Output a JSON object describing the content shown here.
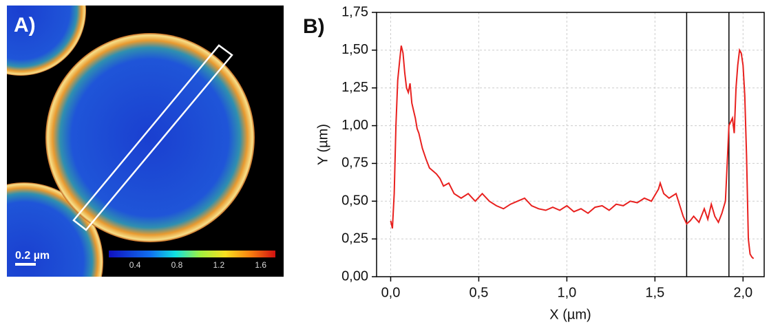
{
  "image_panel": {
    "label": "A)",
    "scale_bar": "0.2 µm",
    "colorbar_lim": [
      0.15,
      1.74
    ],
    "colorbar_ticks": [
      0.4,
      0.8,
      1.2,
      1.6
    ]
  },
  "chart_data": {
    "type": "line",
    "panel_label": "B)",
    "xlabel": "X (µm)",
    "ylabel": "Y (µm)",
    "xlim": [
      -0.08,
      2.12
    ],
    "ylim": [
      0,
      1.75
    ],
    "xticks": [
      {
        "value": 0,
        "label": "0,0"
      },
      {
        "value": 0.5,
        "label": "0,5"
      },
      {
        "value": 1,
        "label": "1,0"
      },
      {
        "value": 1.5,
        "label": "1,5"
      },
      {
        "value": 2,
        "label": "2,0"
      }
    ],
    "yticks": [
      {
        "value": 0,
        "label": "0,00"
      },
      {
        "value": 0.25,
        "label": "0,25"
      },
      {
        "value": 0.5,
        "label": "0,50"
      },
      {
        "value": 0.75,
        "label": "0,75"
      },
      {
        "value": 1,
        "label": "1,00"
      },
      {
        "value": 1.25,
        "label": "1,25"
      },
      {
        "value": 1.5,
        "label": "1,50"
      },
      {
        "value": 1.75,
        "label": "1,75"
      }
    ],
    "grid": true,
    "vlines": [
      1.68,
      1.92
    ],
    "x": [
      0.0,
      0.01,
      0.02,
      0.03,
      0.04,
      0.05,
      0.06,
      0.07,
      0.08,
      0.09,
      0.1,
      0.11,
      0.12,
      0.13,
      0.14,
      0.15,
      0.16,
      0.18,
      0.2,
      0.22,
      0.24,
      0.26,
      0.28,
      0.3,
      0.33,
      0.36,
      0.4,
      0.44,
      0.48,
      0.52,
      0.56,
      0.6,
      0.64,
      0.68,
      0.72,
      0.76,
      0.8,
      0.84,
      0.88,
      0.92,
      0.96,
      1.0,
      1.04,
      1.08,
      1.12,
      1.16,
      1.2,
      1.24,
      1.28,
      1.32,
      1.36,
      1.4,
      1.44,
      1.48,
      1.52,
      1.53,
      1.55,
      1.58,
      1.62,
      1.66,
      1.68,
      1.7,
      1.72,
      1.75,
      1.78,
      1.8,
      1.82,
      1.84,
      1.86,
      1.88,
      1.9,
      1.91,
      1.92,
      1.94,
      1.95,
      1.96,
      1.97,
      1.98,
      1.99,
      2.0,
      2.01,
      2.02,
      2.03,
      2.04,
      2.05,
      2.06
    ],
    "series": [
      {
        "color": "#e8201e",
        "values": [
          0.37,
          0.32,
          0.55,
          1.0,
          1.3,
          1.42,
          1.53,
          1.48,
          1.35,
          1.25,
          1.22,
          1.28,
          1.15,
          1.1,
          1.05,
          0.98,
          0.95,
          0.85,
          0.78,
          0.72,
          0.7,
          0.68,
          0.65,
          0.6,
          0.62,
          0.55,
          0.52,
          0.55,
          0.5,
          0.55,
          0.5,
          0.47,
          0.45,
          0.48,
          0.5,
          0.52,
          0.47,
          0.45,
          0.44,
          0.46,
          0.44,
          0.47,
          0.43,
          0.45,
          0.42,
          0.46,
          0.47,
          0.44,
          0.48,
          0.47,
          0.5,
          0.49,
          0.52,
          0.5,
          0.58,
          0.62,
          0.55,
          0.52,
          0.55,
          0.4,
          0.35,
          0.37,
          0.4,
          0.36,
          0.45,
          0.38,
          0.48,
          0.4,
          0.36,
          0.42,
          0.5,
          0.75,
          1.0,
          1.05,
          0.95,
          1.25,
          1.4,
          1.5,
          1.48,
          1.4,
          1.2,
          0.8,
          0.25,
          0.15,
          0.13,
          0.12
        ]
      }
    ]
  }
}
